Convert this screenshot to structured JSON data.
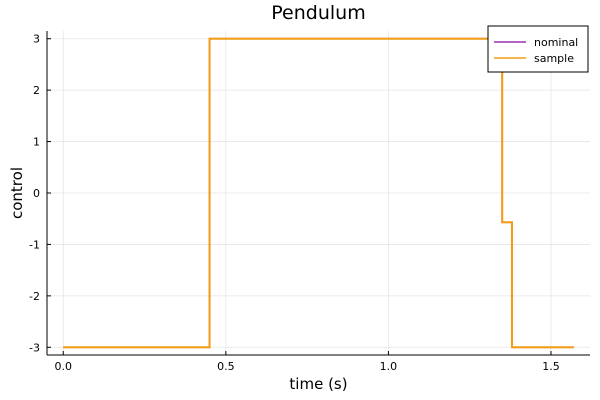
{
  "chart_data": {
    "type": "line",
    "line_shape": "step",
    "title": "Pendulum",
    "xlabel": "time (s)",
    "ylabel": "control",
    "xlim": [
      -0.05,
      1.62
    ],
    "ylim": [
      -3.15,
      3.15
    ],
    "xticks": [
      0.0,
      0.5,
      1.0,
      1.5
    ],
    "xtick_labels": [
      "0.0",
      "0.5",
      "1.0",
      "1.5"
    ],
    "yticks": [
      -3,
      -2,
      -1,
      0,
      1,
      2,
      3
    ],
    "ytick_labels": [
      "-3",
      "-2",
      "-1",
      "0",
      "1",
      "2",
      "3"
    ],
    "grid": true,
    "legend_position": "top-right",
    "series": [
      {
        "name": "nominal",
        "color": "#9b30b0",
        "x": [
          0.0,
          0.45,
          0.45,
          0.52,
          0.52,
          1.35,
          1.35,
          1.38,
          1.38,
          1.57
        ],
        "y": [
          -3.0,
          -3.0,
          3.0,
          3.0,
          3.0,
          3.0,
          -0.57,
          -0.57,
          -3.0,
          -3.0
        ]
      },
      {
        "name": "sample",
        "color": "#f39c12",
        "x": [
          0.0,
          0.45,
          0.45,
          0.52,
          0.52,
          1.34,
          1.34,
          1.35,
          1.35,
          1.38,
          1.38,
          1.57
        ],
        "y": [
          -3.0,
          -3.0,
          3.0,
          3.0,
          3.0,
          3.0,
          2.6,
          2.6,
          -0.57,
          -0.57,
          -3.0,
          -3.0
        ]
      }
    ]
  }
}
